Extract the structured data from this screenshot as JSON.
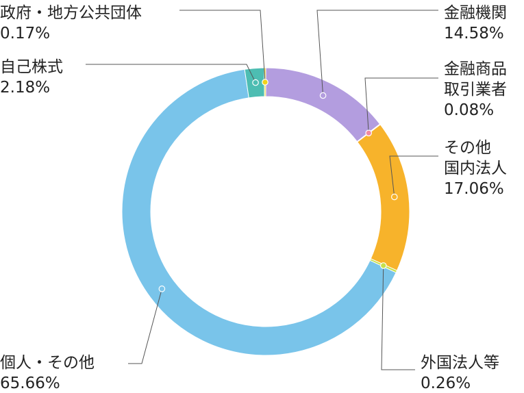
{
  "chart_data": {
    "type": "pie",
    "title": "",
    "slices": [
      {
        "lines": [
          "金融機関"
        ],
        "pct": "14.58%",
        "value": 14.58,
        "color": "#b39ddf"
      },
      {
        "lines": [
          "金融商品",
          "取引業者"
        ],
        "pct": "0.08%",
        "value": 0.08,
        "color": "#f28aa0"
      },
      {
        "lines": [
          "その他",
          "国内法人"
        ],
        "pct": "17.06%",
        "value": 17.06,
        "color": "#f7b32b"
      },
      {
        "lines": [
          "外国法人等"
        ],
        "pct": "0.26%",
        "value": 0.26,
        "color": "#c7e04b"
      },
      {
        "lines": [
          "個人・その他"
        ],
        "pct": "65.66%",
        "value": 65.66,
        "color": "#79c4ea"
      },
      {
        "lines": [
          "自己株式"
        ],
        "pct": "2.18%",
        "value": 2.18,
        "color": "#4dbdb2"
      },
      {
        "lines": [
          "政府・地方公共団体"
        ],
        "pct": "0.17%",
        "value": 0.17,
        "color": "#f2d21a"
      }
    ]
  }
}
